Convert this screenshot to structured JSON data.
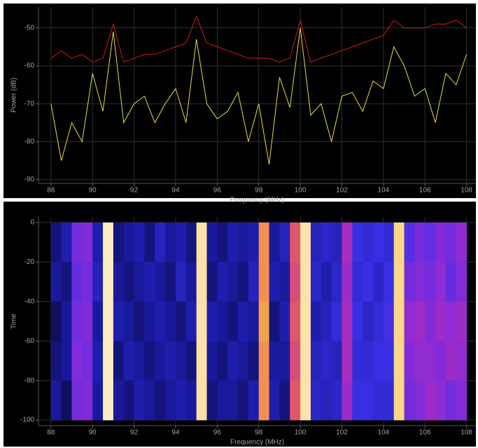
{
  "chart_data": [
    {
      "type": "line",
      "xlabel": "Frequency (MHz)",
      "ylabel": "Power (dB)",
      "x": [
        88,
        88.5,
        89,
        89.5,
        90,
        90.5,
        91,
        91.5,
        92,
        92.5,
        93,
        93.5,
        94,
        94.5,
        95,
        95.5,
        96,
        96.5,
        97,
        97.5,
        98,
        98.5,
        99,
        99.5,
        100,
        100.5,
        101,
        101.5,
        102,
        102.5,
        103,
        103.5,
        104,
        104.5,
        105,
        105.5,
        106,
        106.5,
        107,
        107.5,
        108
      ],
      "series": [
        {
          "color": "#d01818",
          "values": [
            -58,
            -56,
            -58,
            -57,
            -59,
            -58,
            -49,
            -59,
            -58,
            -57,
            -57,
            -56,
            -55,
            -54,
            -47,
            -54,
            -55,
            -56,
            -57,
            -58,
            -58,
            -58,
            -59,
            -58,
            -48,
            -59,
            -58,
            -57,
            -56,
            -55,
            -54,
            -53,
            -52,
            -48,
            -50,
            -50,
            -50,
            -49,
            -49,
            -48,
            -50
          ]
        },
        {
          "color": "#e8e030",
          "values": [
            -70,
            -85,
            -75,
            -80,
            -62,
            -72,
            -51,
            -75,
            -70,
            -68,
            -75,
            -70,
            -66,
            -75,
            -53,
            -70,
            -74,
            -72,
            -67,
            -80,
            -70,
            -86,
            -63,
            -71,
            -50,
            -73,
            -70,
            -80,
            -68,
            -67,
            -72,
            -64,
            -66,
            -55,
            -60,
            -68,
            -66,
            -75,
            -62,
            -65,
            -57
          ]
        }
      ],
      "xlim": [
        87.4,
        108.45
      ],
      "xticks": [
        88,
        90,
        92,
        94,
        96,
        98,
        100,
        102,
        104,
        106,
        108
      ],
      "ylim": [
        -91,
        -44.5
      ],
      "yticks": [
        -50,
        -60,
        -70,
        -80,
        -90
      ],
      "grid": true
    },
    {
      "type": "heatmap",
      "xlabel": "Frequency (MHz)",
      "ylabel": "Time",
      "xbins": [
        88,
        88.5,
        89,
        89.5,
        90,
        90.5,
        91,
        91.5,
        92,
        92.5,
        93,
        93.5,
        94,
        94.5,
        95,
        95.5,
        96,
        96.5,
        97,
        97.5,
        98,
        98.5,
        99,
        99.5,
        100,
        100.5,
        101,
        101.5,
        102,
        102.5,
        103,
        103.5,
        104,
        104.5,
        105,
        105.5,
        106,
        106.5,
        107,
        107.5,
        108
      ],
      "ybins": [
        0,
        -20,
        -40,
        -60,
        -80,
        -100
      ],
      "values": [
        [
          -76,
          -74,
          -66,
          -65,
          -74,
          -45,
          -76,
          -75,
          -74,
          -76,
          -73,
          -75,
          -74,
          -76,
          -46,
          -75,
          -76,
          -74,
          -75,
          -74,
          -52,
          -75,
          -73,
          -56,
          -46,
          -73,
          -72,
          -73,
          -62,
          -70,
          -71,
          -70,
          -71,
          -47,
          -68,
          -66,
          -67,
          -65,
          -66,
          -64
        ],
        [
          -75,
          -76,
          -67,
          -66,
          -73,
          -45,
          -75,
          -76,
          -75,
          -74,
          -75,
          -76,
          -73,
          -75,
          -46,
          -76,
          -74,
          -75,
          -76,
          -73,
          -52,
          -74,
          -75,
          -57,
          -46,
          -72,
          -74,
          -72,
          -63,
          -71,
          -70,
          -72,
          -70,
          -47,
          -66,
          -65,
          -66,
          -64,
          -67,
          -65
        ],
        [
          -77,
          -75,
          -66,
          -65,
          -75,
          -45,
          -74,
          -75,
          -76,
          -75,
          -74,
          -75,
          -76,
          -74,
          -46,
          -74,
          -75,
          -76,
          -74,
          -75,
          -51,
          -76,
          -74,
          -56,
          -46,
          -74,
          -73,
          -71,
          -62,
          -70,
          -72,
          -71,
          -69,
          -47,
          -64,
          -63,
          -65,
          -63,
          -64,
          -63
        ],
        [
          -76,
          -75,
          -65,
          -66,
          -74,
          -45,
          -76,
          -74,
          -75,
          -76,
          -75,
          -74,
          -75,
          -76,
          -46,
          -75,
          -76,
          -74,
          -75,
          -76,
          -52,
          -75,
          -75,
          -57,
          -46,
          -73,
          -72,
          -73,
          -62,
          -71,
          -71,
          -70,
          -70,
          -47,
          -65,
          -64,
          -64,
          -65,
          -63,
          -64
        ],
        [
          -75,
          -77,
          -66,
          -65,
          -75,
          -45,
          -75,
          -76,
          -74,
          -75,
          -76,
          -75,
          -74,
          -75,
          -46,
          -76,
          -75,
          -75,
          -76,
          -74,
          -52,
          -74,
          -76,
          -56,
          -46,
          -72,
          -73,
          -72,
          -63,
          -70,
          -70,
          -71,
          -71,
          -47,
          -66,
          -65,
          -63,
          -64,
          -66,
          -65
        ]
      ],
      "zlim": [
        -80,
        -44
      ],
      "colormap": [
        "#000000",
        "#1a1aa0",
        "#3a30e8",
        "#8a2ad8",
        "#c8329e",
        "#ee6a50",
        "#f7c04a",
        "#fff8e0"
      ],
      "xlim": [
        87.4,
        108.45
      ],
      "xticks": [
        88,
        90,
        92,
        94,
        96,
        98,
        100,
        102,
        104,
        106,
        108
      ],
      "ylim": [
        -102.8,
        2.8
      ],
      "yticks": [
        0,
        -20,
        -40,
        -60,
        -80,
        -100
      ],
      "grid": true
    }
  ]
}
